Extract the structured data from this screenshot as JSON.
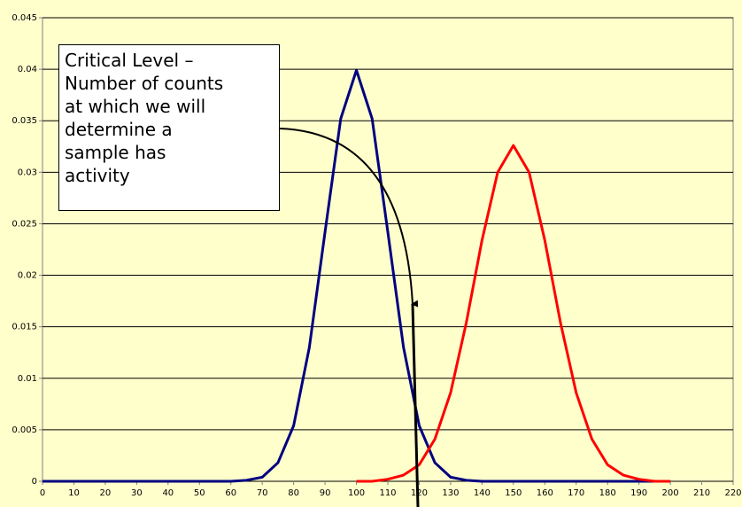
{
  "chart_data": {
    "type": "line",
    "annotation": [
      "Critical Level –",
      "Number of counts",
      "at which we will",
      "determine a",
      "sample has",
      "activity"
    ],
    "series": [
      {
        "color": "#000080",
        "x": [
          0,
          5,
          10,
          15,
          20,
          25,
          30,
          35,
          40,
          45,
          50,
          55,
          60,
          65,
          70,
          75,
          80,
          85,
          90,
          95,
          100,
          105,
          110,
          115,
          120,
          125,
          130,
          135,
          140,
          145,
          150,
          155,
          160,
          165,
          170,
          175,
          180,
          185,
          190,
          195,
          200
        ],
        "values": [
          0,
          0,
          0,
          0,
          0,
          0,
          0,
          0,
          0,
          0,
          0,
          0,
          0,
          0.0001,
          0.0004,
          0.0018,
          0.0054,
          0.013,
          0.0242,
          0.0352,
          0.0399,
          0.0352,
          0.0242,
          0.013,
          0.0054,
          0.0018,
          0.0004,
          0.0001,
          0,
          0,
          0,
          0,
          0,
          0,
          0,
          0,
          0,
          0,
          0,
          0,
          0
        ]
      },
      {
        "color": "#FF0000",
        "x": [
          100,
          105,
          110,
          115,
          120,
          125,
          130,
          135,
          140,
          145,
          150,
          155,
          160,
          165,
          170,
          175,
          180,
          185,
          190,
          195,
          200
        ],
        "values": [
          0,
          0,
          0.0002,
          0.0006,
          0.0016,
          0.0041,
          0.0086,
          0.0154,
          0.0234,
          0.03,
          0.0326,
          0.03,
          0.0234,
          0.0154,
          0.0086,
          0.0041,
          0.0016,
          0.0006,
          0.0002,
          0,
          0
        ]
      }
    ],
    "xlim": [
      0,
      220
    ],
    "xticks": [
      0,
      10,
      20,
      30,
      40,
      50,
      60,
      70,
      80,
      90,
      100,
      110,
      120,
      130,
      140,
      150,
      160,
      170,
      180,
      190,
      200,
      210,
      220
    ],
    "ylim": [
      0,
      0.045
    ],
    "yticks": [
      0,
      0.005,
      0.01,
      0.015,
      0.02,
      0.025,
      0.03,
      0.035,
      0.04,
      0.045
    ],
    "grid": true
  }
}
